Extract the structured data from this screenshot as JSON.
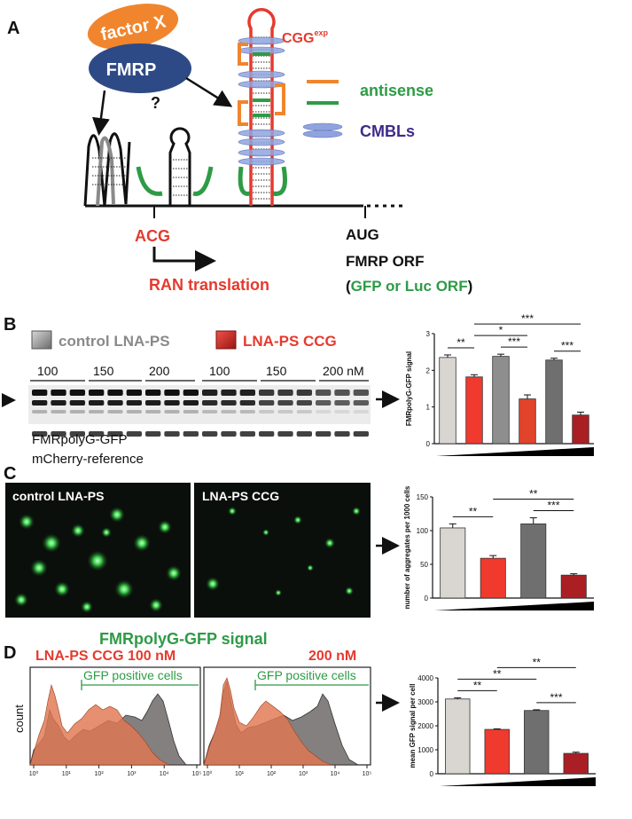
{
  "panels": {
    "A": {
      "letter": "A",
      "factor_x": "factor X",
      "fmrp": "FMRP",
      "question": "?",
      "cgg": "CGG",
      "cgg_sup": "exp",
      "legend_antisense": "antisense",
      "legend_cmbls": "CMBLs",
      "acg": "ACG",
      "ran_translation": "RAN translation",
      "aug": "AUG",
      "fmrp_orf": "FMRP ORF",
      "gfp_luc": "GFP or Luc ORF",
      "paren_open": "(",
      "paren_close": ")",
      "colors": {
        "orange": "#F0852D",
        "navy": "#2E4A86",
        "red": "#E53A2E",
        "green": "#2E9B46",
        "purple": "#3F2A8A"
      }
    },
    "B": {
      "letter": "B",
      "legend_control": "control LNA-PS",
      "legend_ccg": "LNA-PS CCG",
      "doses_control": [
        "100",
        "150",
        "200"
      ],
      "doses_ccg": [
        "100",
        "150",
        "200 nM"
      ],
      "blot1_label": "FMRpolyG-GFP",
      "blot2_label": "mCherry-reference",
      "arrow": "→"
    },
    "C": {
      "letter": "C",
      "image1_label": "control LNA-PS",
      "image2_label": "LNA-PS CCG",
      "caption": "FMRpolyG-GFP signal"
    },
    "D": {
      "letter": "D",
      "left_title": "LNA-PS CCG 100 nM",
      "right_title": "200 nM",
      "gate_label": "GFP positive cells",
      "ylabel": "count",
      "xticks": [
        "10⁰",
        "10¹",
        "10²",
        "10³",
        "10⁴",
        "10⁵"
      ]
    }
  },
  "chart_data": [
    {
      "type": "bar",
      "panel": "B",
      "ylabel": "FMRpolyG-GFP signal",
      "ylim": [
        0,
        3
      ],
      "yticks": [
        "0",
        "1",
        "2",
        "3"
      ],
      "values": [
        2.35,
        1.82,
        2.38,
        1.22,
        2.28,
        0.78
      ],
      "errors": [
        0.07,
        0.06,
        0.06,
        0.11,
        0.05,
        0.08
      ],
      "colors": [
        "#D9D6D2",
        "#F03A2E",
        "#8E8E8E",
        "#E2432B",
        "#6F6F6F",
        "#AA1F24"
      ],
      "significance": [
        {
          "from": 0,
          "to": 1,
          "label": "**"
        },
        {
          "from": 1,
          "to": 3,
          "label": "*"
        },
        {
          "from": 2,
          "to": 3,
          "label": "***"
        },
        {
          "from": 4,
          "to": 5,
          "label": "***"
        },
        {
          "from": 1,
          "to": 5,
          "label": "***"
        }
      ]
    },
    {
      "type": "bar",
      "panel": "C",
      "ylabel": "number of aggregates per 1000 cells",
      "ylim": [
        0,
        150
      ],
      "yticks": [
        "0",
        "50",
        "100",
        "150"
      ],
      "values": [
        104,
        59,
        110,
        34
      ],
      "errors": [
        6,
        4,
        9,
        2
      ],
      "colors": [
        "#D9D6D2",
        "#F03A2E",
        "#6F6F6F",
        "#AA1F24"
      ],
      "significance": [
        {
          "from": 0,
          "to": 1,
          "label": "**"
        },
        {
          "from": 2,
          "to": 3,
          "label": "***"
        },
        {
          "from": 1,
          "to": 3,
          "label": "**"
        }
      ]
    },
    {
      "type": "bar",
      "panel": "D",
      "ylabel": "mean GFP signal per cell",
      "ylim": [
        0,
        4000
      ],
      "yticks": [
        "0",
        "1000",
        "2000",
        "3000",
        "4000"
      ],
      "values": [
        3120,
        1850,
        2640,
        850
      ],
      "errors": [
        50,
        25,
        30,
        50
      ],
      "colors": [
        "#D9D6D2",
        "#F03A2E",
        "#6F6F6F",
        "#AA1F24"
      ],
      "significance": [
        {
          "from": 0,
          "to": 1,
          "label": "**"
        },
        {
          "from": 0,
          "to": 2,
          "label": "**"
        },
        {
          "from": 1,
          "to": 3,
          "label": "**"
        },
        {
          "from": 2,
          "to": 3,
          "label": "***"
        }
      ]
    }
  ]
}
